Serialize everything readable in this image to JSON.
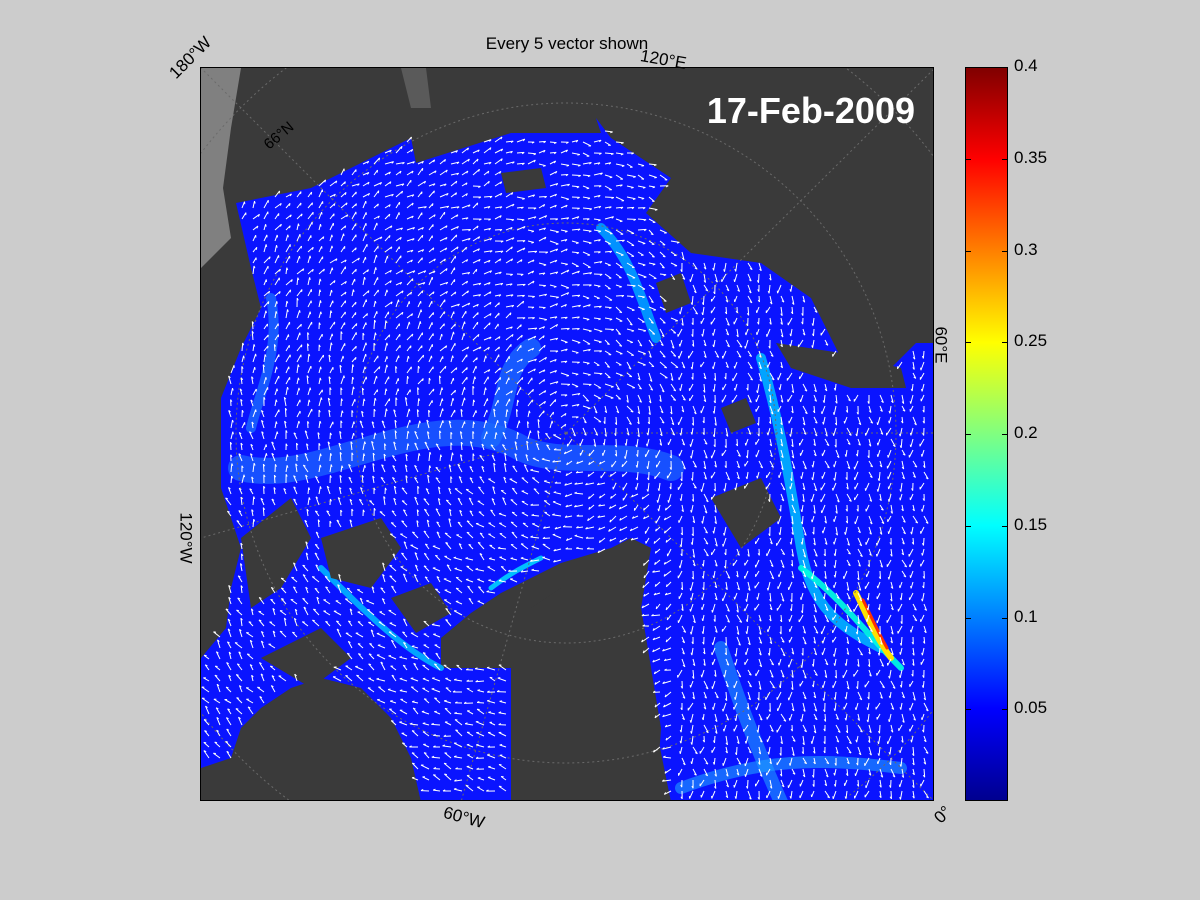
{
  "figure": {
    "title": "Every 5 vector shown",
    "date": "17-Feb-2009"
  },
  "map": {
    "projection": "north-polar-stereographic",
    "longitude_labels": [
      "180°W",
      "120°E",
      "60°E",
      "0°",
      "60°W",
      "120°W"
    ],
    "latitude_labels": [
      "66°N"
    ],
    "colors": {
      "land": "#3a3a3a",
      "outside_domain": "#808080",
      "ice_low": "#0a14ff",
      "ice_high": "#00c8ff",
      "vectors": "#ffffff",
      "graticule": "#555555"
    },
    "layers": [
      "sea-ice-velocity-magnitude",
      "velocity-vectors",
      "land-mask",
      "graticule"
    ]
  },
  "colorbar": {
    "colormap": "jet",
    "range": [
      0,
      0.4
    ],
    "ticks": [
      {
        "value": 0.05,
        "label": "0.05"
      },
      {
        "value": 0.1,
        "label": "0.1"
      },
      {
        "value": 0.15,
        "label": "0.15"
      },
      {
        "value": 0.2,
        "label": "0.2"
      },
      {
        "value": 0.25,
        "label": "0.25"
      },
      {
        "value": 0.3,
        "label": "0.3"
      },
      {
        "value": 0.35,
        "label": "0.35"
      },
      {
        "value": 0.4,
        "label": "0.4"
      }
    ]
  }
}
